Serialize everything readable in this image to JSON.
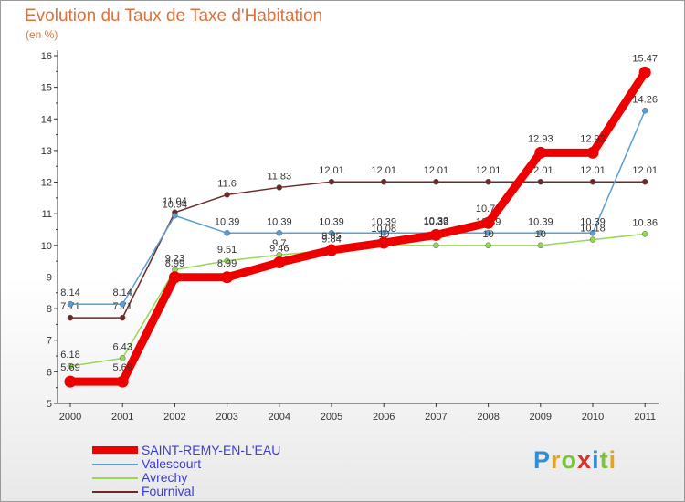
{
  "title": "Evolution du Taux de Taxe d'Habitation",
  "unit": "(en %)",
  "logo": "Proxiti",
  "chart_data": {
    "type": "line",
    "x": [
      "2000",
      "2001",
      "2002",
      "2003",
      "2004",
      "2005",
      "2006",
      "2007",
      "2008",
      "2009",
      "2010",
      "2011"
    ],
    "ylim": [
      5,
      16
    ],
    "yticks": [
      "5",
      "6",
      "7",
      "8",
      "9",
      "10",
      "11",
      "12",
      "13",
      "14",
      "15",
      "16"
    ],
    "grid": false,
    "legend_position": "bottom-left",
    "series": [
      {
        "name": "Fournival",
        "color": "#6e2828",
        "values": [
          7.71,
          7.71,
          11.04,
          11.6,
          11.83,
          12.01,
          12.01,
          12.01,
          12.01,
          12.01,
          12.01,
          12.01
        ],
        "labels": [
          "7.71",
          "7.71",
          "11.04",
          "11.6",
          "11.83",
          "12.01",
          "12.01",
          "12.01",
          "12.01",
          "12.01",
          "12.01",
          "12.01"
        ]
      },
      {
        "name": "Valescourt",
        "color": "#5a9fd4",
        "values": [
          8.14,
          8.14,
          10.94,
          10.39,
          10.39,
          10.39,
          10.39,
          10.39,
          10.39,
          10.39,
          10.39,
          14.26
        ],
        "labels": [
          "8.14",
          "8.14",
          "10.94",
          "10.39",
          "10.39",
          "10.39",
          "10.39",
          "10.39",
          "10.39",
          "10.39",
          "10.39",
          "14.26"
        ]
      },
      {
        "name": "Avrechy",
        "color": "#96d855",
        "values": [
          6.18,
          6.43,
          9.23,
          9.51,
          9.7,
          9.84,
          10,
          10,
          10,
          10,
          10.18,
          10.36
        ],
        "labels": [
          "6.18",
          "6.43",
          "9.23",
          "9.51",
          "9.7",
          "9.84",
          "10",
          "10",
          "10",
          "10",
          "10.18",
          "10.36"
        ]
      },
      {
        "name": "SAINT-REMY-EN-L'EAU",
        "color": "#ee0000",
        "values": [
          5.69,
          5.69,
          8.99,
          8.99,
          9.46,
          9.85,
          10.08,
          10.33,
          10.71,
          12.93,
          12.93,
          15.47
        ],
        "labels": [
          "5.69",
          "5.69",
          "8.99",
          "8.99",
          "9.46",
          "9.85",
          "10.08",
          "10.33",
          "10.71",
          "12.93",
          "12.93",
          "15.47"
        ]
      }
    ],
    "legend": [
      {
        "name": "SAINT-REMY-EN-L'EAU",
        "color": "#ee0000",
        "thick": true
      },
      {
        "name": "Valescourt",
        "color": "#5a9fd4",
        "thick": false
      },
      {
        "name": "Avrechy",
        "color": "#96d855",
        "thick": false
      },
      {
        "name": "Fournival",
        "color": "#6e2828",
        "thick": false
      }
    ]
  }
}
